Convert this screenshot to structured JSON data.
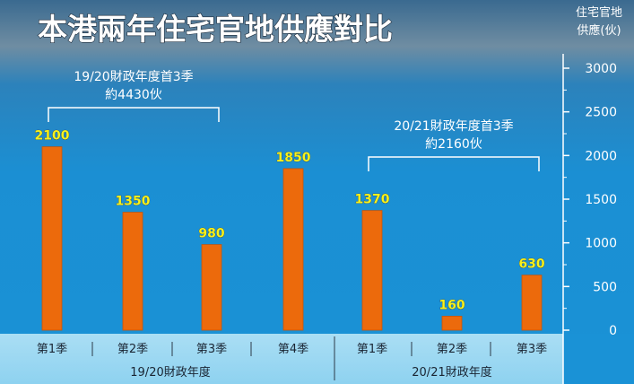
{
  "colors": {
    "bar": "#ec6a0c",
    "value_label": "#f6f21c",
    "axis_text": "#ffffff",
    "band_top": "#a8ddf3",
    "band_bottom": "#8fd3f0",
    "sky_top": "#3c6f96",
    "water": "#1a8fd4"
  },
  "chart_data": {
    "type": "bar",
    "title": "本港兩年住宅官地供應對比",
    "ylabel_line1": "住宅官地",
    "ylabel_line2": "供應(伙)",
    "ylim": [
      0,
      3000
    ],
    "yticks": [
      0,
      500,
      1000,
      1500,
      2000,
      2500,
      3000
    ],
    "categories": [
      "第1季",
      "第2季",
      "第3季",
      "第4季",
      "第1季",
      "第2季",
      "第3季"
    ],
    "values": [
      2100,
      1350,
      980,
      1850,
      1370,
      160,
      630
    ],
    "value_labels": [
      "2100",
      "1350",
      "980",
      "1850",
      "1370",
      "160",
      "630"
    ],
    "groups": [
      {
        "label": "19/20財政年度",
        "start": 0,
        "end": 3
      },
      {
        "label": "20/21財政年度",
        "start": 4,
        "end": 6
      }
    ],
    "annotations": [
      {
        "line1": "19/20財政年度首3季",
        "line2": "約4430伙",
        "from": 0,
        "to": 2
      },
      {
        "line1": "20/21財政年度首3季",
        "line2": "約2160伙",
        "from": 4,
        "to": 6
      }
    ]
  }
}
